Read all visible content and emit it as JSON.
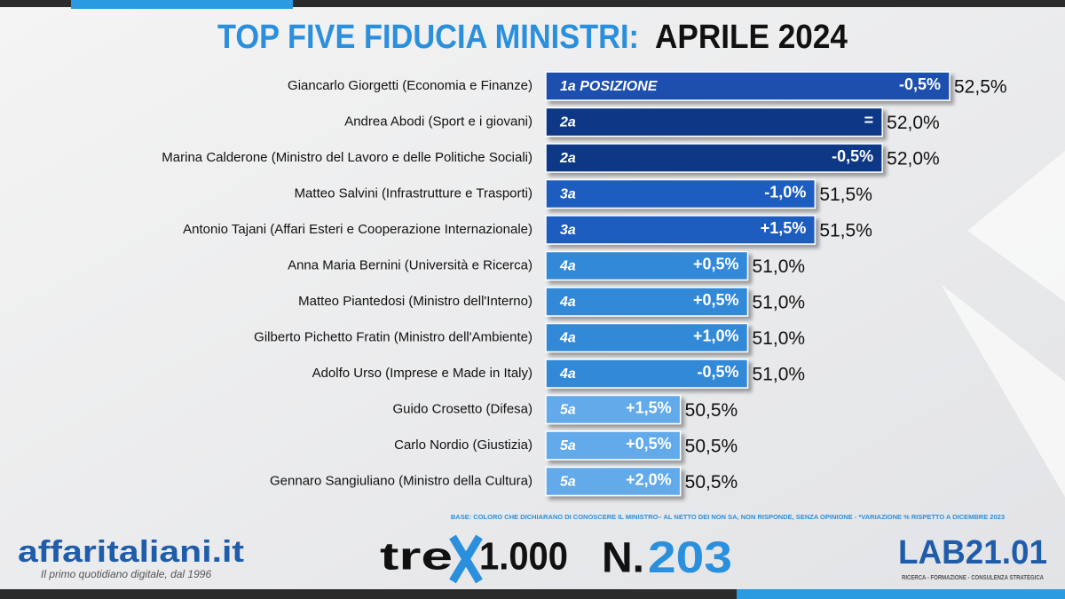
{
  "chart_data": {
    "type": "bar",
    "orientation": "horizontal",
    "title": "TOP FIVE FIDUCIA MINISTRI:",
    "subtitle": "APRILE 2024",
    "categories": [
      "Giancarlo Giorgetti (Economia e Finanze)",
      "Andrea Abodi (Sport e i giovani)",
      "Marina Calderone (Ministro del Lavoro e delle Politiche Sociali)",
      "Matteo Salvini (Infrastrutture e Trasporti)",
      "Antonio Tajani (Affari Esteri e Cooperazione Internazionale)",
      "Anna Maria Bernini (Università e Ricerca)",
      "Matteo Piantedosi (Ministro dell'Interno)",
      "Gilberto Pichetto Fratin (Ministro dell'Ambiente)",
      "Adolfo Urso (Imprese e Made in Italy)",
      "Guido Crosetto (Difesa)",
      "Carlo Nordio (Giustizia)",
      "Gennaro Sangiuliano (Ministro della Cultura)"
    ],
    "values": [
      52.5,
      52.0,
      52.0,
      51.5,
      51.5,
      51.0,
      51.0,
      51.0,
      51.0,
      50.5,
      50.5,
      50.5
    ],
    "value_labels": [
      "52,5%",
      "52,0%",
      "52,0%",
      "51,5%",
      "51,5%",
      "51,0%",
      "51,0%",
      "51,0%",
      "51,0%",
      "50,5%",
      "50,5%",
      "50,5%"
    ],
    "positions": [
      "1a POSIZIONE",
      "2a",
      "2a",
      "3a",
      "3a",
      "4a",
      "4a",
      "4a",
      "4a",
      "5a",
      "5a",
      "5a"
    ],
    "changes": [
      "-0,5%",
      "=",
      "-0,5%",
      "-1,0%",
      "+1,5%",
      "+0,5%",
      "+0,5%",
      "+1,0%",
      "-0,5%",
      "+1,5%",
      "+0,5%",
      "+2,0%"
    ],
    "colors": [
      "#1c4fae",
      "#0f3886",
      "#0f3886",
      "#1f5dbf",
      "#1f5dbf",
      "#3189d8",
      "#3189d8",
      "#3189d8",
      "#3189d8",
      "#62aaea",
      "#62aaea",
      "#62aaea"
    ],
    "xlim": [
      49.5,
      52.5
    ],
    "note": "BASE: COLORO CHE DICHIARANO DI CONOSCERE IL MINISTRO– AL NETTO DEI NON SA, NON RISPONDE, SENZA OPINIONE - *VARIAZIONE % RISPETTO A DICEMBRE 2023"
  },
  "logos": {
    "publisher": "affaritaliani.it",
    "publisher_tagline": "Il primo quotidiano digitale, dal 1996",
    "series_a": "tre",
    "series_b": "1.000",
    "number_label": "N.",
    "number": "203",
    "lab": "LAB21.01",
    "lab_tagline": "RICERCA - FORMAZIONE - CONSULENZA STRATEGICA"
  }
}
